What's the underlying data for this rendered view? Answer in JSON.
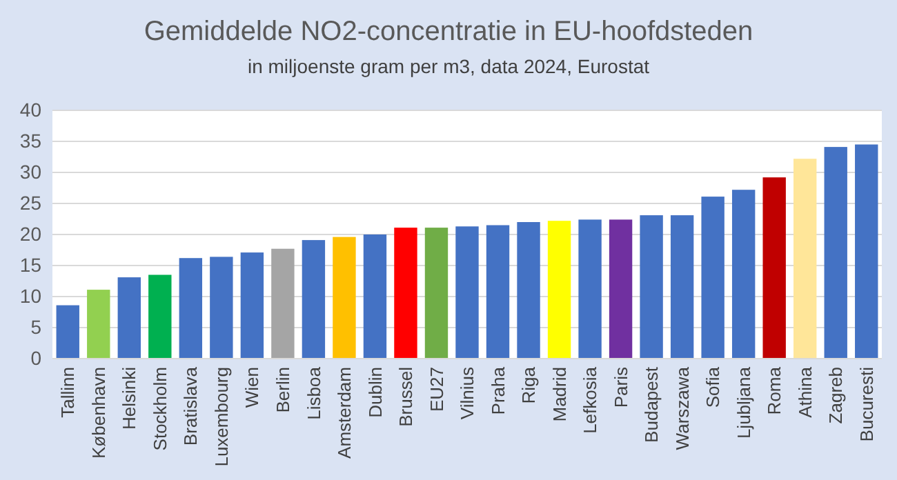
{
  "chart_data": {
    "type": "bar",
    "title": "Gemiddelde NO2-concentratie in EU-hoofdsteden",
    "subtitle": "in miljoenste gram per m3, data 2024, Eurostat",
    "categories": [
      "Tallinn",
      "København",
      "Helsinki",
      "Stockholm",
      "Bratislava",
      "Luxembourg",
      "Wien",
      "Berlin",
      "Lisboa",
      "Amsterdam",
      "Dublin",
      "Brussel",
      "EU27",
      "Vilnius",
      "Praha",
      "Riga",
      "Madrid",
      "Lefkosia",
      "Paris",
      "Budapest",
      "Warszawa",
      "Sofia",
      "Ljubljana",
      "Roma",
      "Athina",
      "Zagreb",
      "Bucuresti"
    ],
    "values": [
      8.6,
      11.1,
      13.1,
      13.5,
      16.2,
      16.4,
      17.1,
      17.7,
      19.1,
      19.6,
      20.0,
      21.1,
      21.1,
      21.3,
      21.5,
      22.0,
      22.2,
      22.4,
      22.4,
      23.1,
      23.1,
      26.1,
      27.2,
      29.2,
      32.2,
      34.1,
      34.5
    ],
    "colors": [
      "#4472c4",
      "#92d050",
      "#4472c4",
      "#00b050",
      "#4472c4",
      "#4472c4",
      "#4472c4",
      "#a5a5a5",
      "#4472c4",
      "#ffc000",
      "#4472c4",
      "#ff0000",
      "#70ad47",
      "#4472c4",
      "#4472c4",
      "#4472c4",
      "#ffff00",
      "#4472c4",
      "#7030a0",
      "#4472c4",
      "#4472c4",
      "#4472c4",
      "#4472c4",
      "#c00000",
      "#ffe699",
      "#4472c4",
      "#4472c4"
    ],
    "ylim": [
      0,
      40
    ],
    "yticks": [
      0,
      5,
      10,
      15,
      20,
      25,
      30,
      35,
      40
    ],
    "grid": "y"
  }
}
